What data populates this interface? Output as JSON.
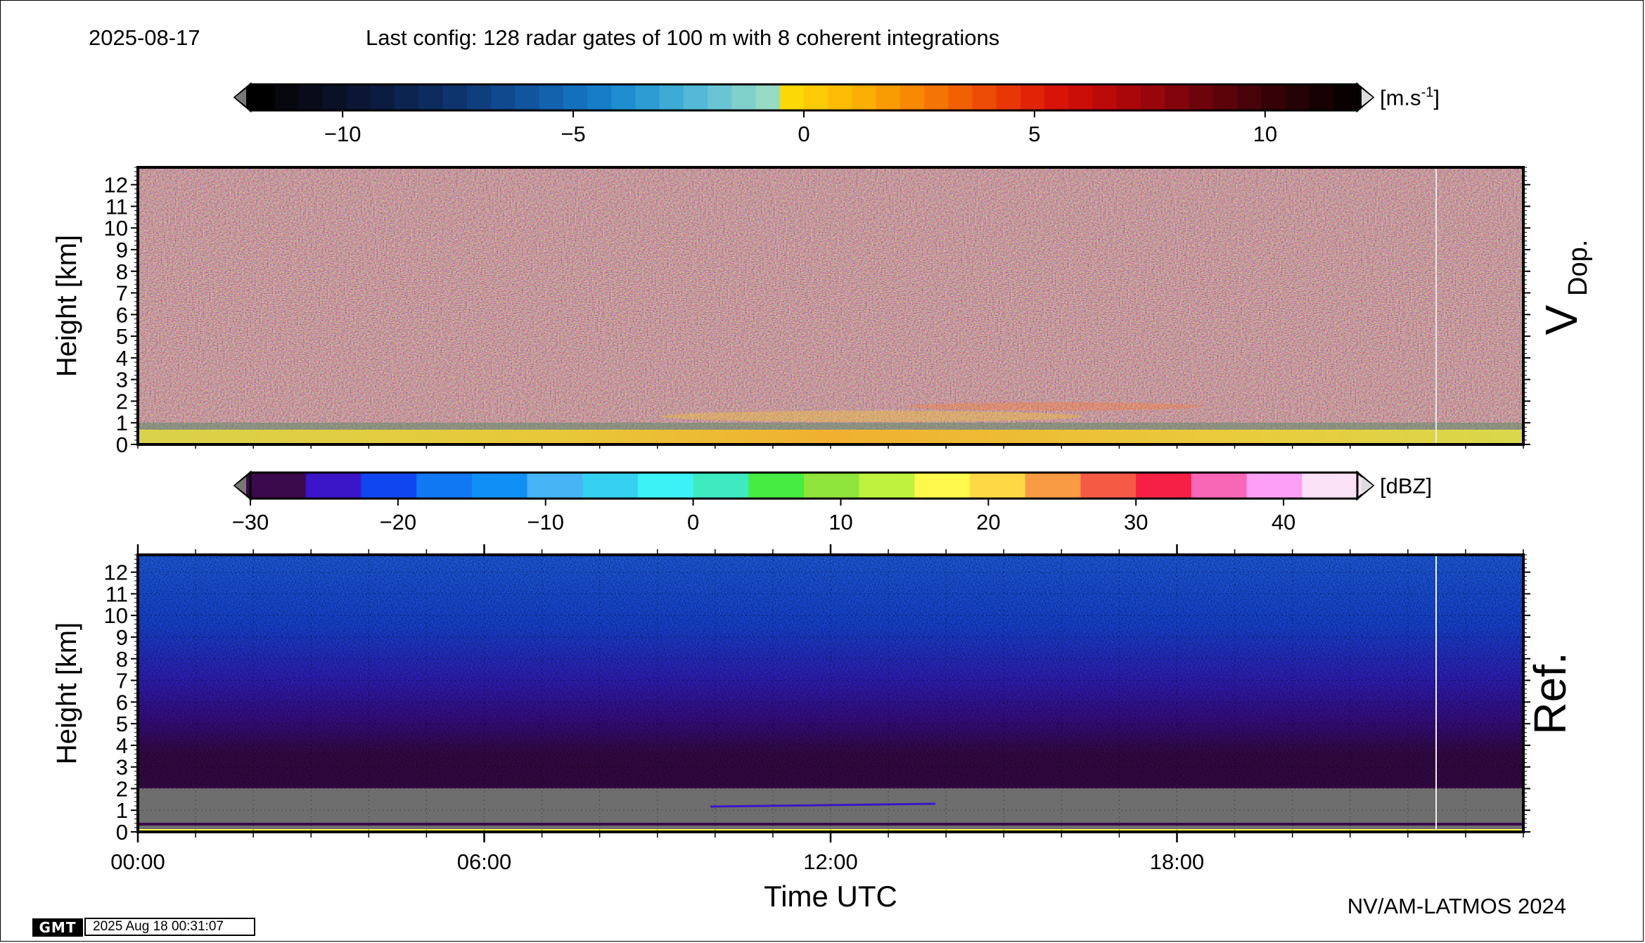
{
  "header": {
    "date": "2025-08-17",
    "config": "Last config: 128 radar gates of 100 m with 8 coherent integrations"
  },
  "footer": {
    "credit": "NV/AM-LATMOS 2024",
    "gmt_logo": "GMT",
    "gmt_timestamp": "2025 Aug 18 00:31:07"
  },
  "chart_data": [
    {
      "type": "heatmap",
      "title": "V Dop.",
      "panel_label_main": "V",
      "panel_label_sub": "Dop.",
      "ylabel": "Height [km]",
      "xlabel": "",
      "x_range_hours": [
        0,
        24
      ],
      "ylim": [
        0,
        12.8
      ],
      "y_ticks": [
        "0",
        "1",
        "2",
        "3",
        "4",
        "5",
        "6",
        "7",
        "8",
        "9",
        "10",
        "11",
        "12"
      ],
      "colorbar": {
        "unit_prefix": "[m.s",
        "unit_exp": "-1",
        "unit_suffix": "]",
        "range": [
          -12,
          12
        ],
        "ticks": [
          "−10",
          "−5",
          "0",
          "5",
          "10"
        ],
        "tick_values": [
          -10,
          -5,
          0,
          5,
          10
        ],
        "colors": [
          "#000000",
          "#07070f",
          "#0a0b1a",
          "#0a1126",
          "#0a1633",
          "#0b1c40",
          "#0c2450",
          "#0d2c5e",
          "#0e346d",
          "#0f3e7d",
          "#10498d",
          "#11559e",
          "#1262ae",
          "#1370bd",
          "#167ec8",
          "#1f8dcf",
          "#2c9cd3",
          "#3eabd6",
          "#53b9d7",
          "#69c5d4",
          "#80d0cc",
          "#97dac3",
          "#fbd806",
          "#fccb05",
          "#fcbd04",
          "#fbae03",
          "#f99c03",
          "#f78903",
          "#f47503",
          "#f16103",
          "#ed4c04",
          "#e83705",
          "#e12306",
          "#d71407",
          "#cb0d08",
          "#bc0909",
          "#aa070a",
          "#96060b",
          "#82050b",
          "#6e040b",
          "#5a040a",
          "#470309",
          "#350307",
          "#250205",
          "#170103",
          "#0b0001"
        ]
      },
      "description_values": {
        "near_surface_band_km": [
          0,
          0.6
        ],
        "enhanced_layer_km": [
          1.0,
          1.6
        ],
        "enhanced_layer_hours": [
          9.5,
          15.5
        ]
      }
    },
    {
      "type": "heatmap",
      "title": "Ref.",
      "panel_label_main": "Ref.",
      "ylabel": "Height [km]",
      "xlabel": "Time UTC",
      "x_ticks": [
        "00:00",
        "06:00",
        "12:00",
        "18:00"
      ],
      "x_tick_hours": [
        0,
        6,
        12,
        18
      ],
      "x_range_hours": [
        0,
        24
      ],
      "ylim": [
        0,
        12.8
      ],
      "y_ticks": [
        "0",
        "1",
        "2",
        "3",
        "4",
        "5",
        "6",
        "7",
        "8",
        "9",
        "10",
        "11",
        "12"
      ],
      "colorbar": {
        "unit": "[dBZ]",
        "range": [
          -30,
          45
        ],
        "ticks": [
          "−30",
          "−20",
          "−10",
          "0",
          "10",
          "20",
          "30",
          "40"
        ],
        "tick_values": [
          -30,
          -20,
          -10,
          0,
          10,
          20,
          30,
          40
        ],
        "colors": [
          "#3a0a4c",
          "#3a16c8",
          "#1046f0",
          "#0f78f2",
          "#1090f4",
          "#47b5f5",
          "#36d0f0",
          "#3cf2f6",
          "#3eeac0",
          "#46ec42",
          "#8fe53c",
          "#bff23f",
          "#fef94a",
          "#fed845",
          "#f99a44",
          "#f55a45",
          "#f52044",
          "#f867b6",
          "#fd9ff5",
          "#fbe2f6"
        ]
      },
      "description_values": {
        "noise_floor_dbz_upper": -20,
        "noise_floor_dbz_lower": -27,
        "no_echo_below_km": 2.0
      }
    }
  ]
}
